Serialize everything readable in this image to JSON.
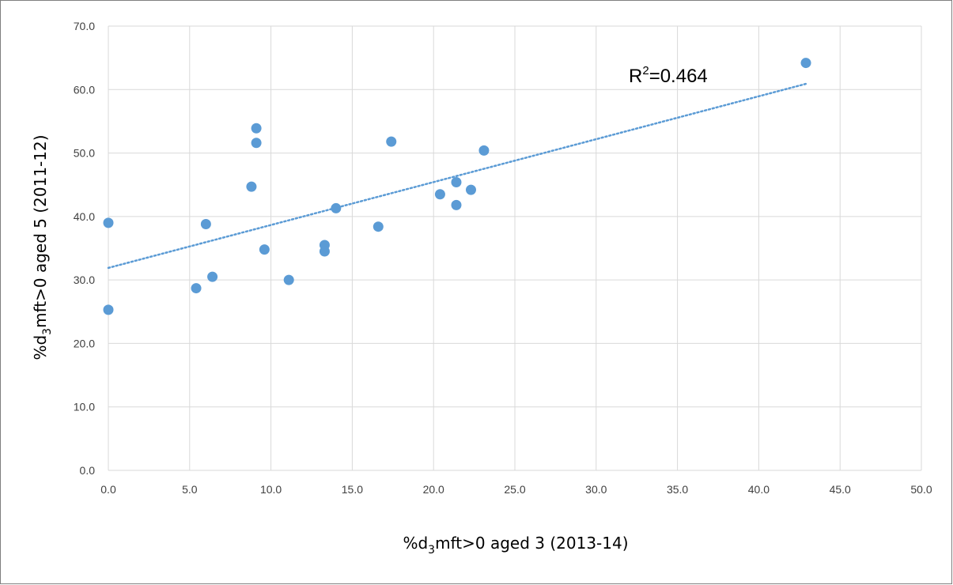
{
  "chart_data": {
    "type": "scatter",
    "xlabel": {
      "before": "%d",
      "sub": "3",
      "after": "mft>0 aged 3 (2013-14)"
    },
    "ylabel": {
      "before": "%d",
      "sub": "3",
      "after": "mft>0 aged 5 (2011-12)"
    },
    "xlim": [
      0,
      50
    ],
    "ylim": [
      0,
      70
    ],
    "x_ticks": [
      0,
      5,
      10,
      15,
      20,
      25,
      30,
      35,
      40,
      45,
      50
    ],
    "y_ticks": [
      0,
      10,
      20,
      30,
      40,
      50,
      60,
      70
    ],
    "x_tick_labels": [
      "0.0",
      "5.0",
      "10.0",
      "15.0",
      "20.0",
      "25.0",
      "30.0",
      "35.0",
      "40.0",
      "45.0",
      "50.0"
    ],
    "y_tick_labels": [
      "0.0",
      "10.0",
      "20.0",
      "30.0",
      "40.0",
      "50.0",
      "60.0",
      "70.0"
    ],
    "grid": true,
    "series": [
      {
        "color": "#5b9bd5",
        "points": [
          [
            0.0,
            39.0
          ],
          [
            0.0,
            25.3
          ],
          [
            5.4,
            28.7
          ],
          [
            6.0,
            38.8
          ],
          [
            6.4,
            30.5
          ],
          [
            8.8,
            44.7
          ],
          [
            9.1,
            53.9
          ],
          [
            9.1,
            51.6
          ],
          [
            9.6,
            34.8
          ],
          [
            11.1,
            30.0
          ],
          [
            13.3,
            35.5
          ],
          [
            13.3,
            34.5
          ],
          [
            14.0,
            41.3
          ],
          [
            16.6,
            38.4
          ],
          [
            17.4,
            51.8
          ],
          [
            20.4,
            43.5
          ],
          [
            21.4,
            45.4
          ],
          [
            21.4,
            41.8
          ],
          [
            22.3,
            44.2
          ],
          [
            23.1,
            50.4
          ],
          [
            42.9,
            64.2
          ]
        ]
      }
    ],
    "trendline": {
      "type": "linear-dotted",
      "color": "#5b9bd5",
      "x": [
        0,
        42.9
      ],
      "y": [
        31.9,
        60.9
      ]
    },
    "annotation": {
      "base": "R",
      "sup": "2",
      "rest": "=0.464"
    }
  }
}
